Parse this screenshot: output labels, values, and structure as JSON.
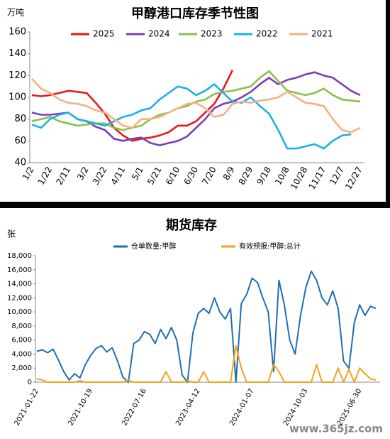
{
  "chart_data": [
    {
      "type": "line",
      "title": "甲醇港口库存季节性图",
      "y_label": "万吨",
      "categories": [
        "1/2",
        null,
        "1/22",
        null,
        "2/11",
        null,
        "3/2",
        null,
        "3/22",
        null,
        "4/11",
        null,
        "5/1",
        null,
        "5/21",
        null,
        "6/10",
        null,
        "6/30",
        null,
        "7/20",
        null,
        "8/9",
        null,
        "8/29",
        null,
        "9/18",
        null,
        "10/8",
        null,
        "10/28",
        null,
        "11/17",
        null,
        "12/7",
        null,
        "12/27"
      ],
      "ylim": [
        40,
        160
      ],
      "yticks": [
        40,
        60,
        80,
        100,
        120,
        140,
        160
      ],
      "grid": false,
      "series": [
        {
          "name": "2025",
          "color": "#e8191c",
          "values": [
            102,
            101,
            102,
            104,
            106,
            105,
            104,
            95,
            85,
            72,
            65,
            60,
            62,
            63,
            65,
            68,
            74,
            74,
            78,
            86,
            94,
            108,
            125,
            null,
            null,
            null,
            null,
            null,
            null,
            null,
            null,
            null,
            null,
            null,
            null,
            null,
            null
          ]
        },
        {
          "name": "2024",
          "color": "#7b3fb0",
          "values": [
            86,
            84,
            84,
            85,
            86,
            80,
            78,
            73,
            70,
            62,
            60,
            62,
            63,
            58,
            56,
            58,
            60,
            64,
            72,
            80,
            90,
            94,
            96,
            100,
            105,
            112,
            118,
            112,
            116,
            118,
            121,
            123,
            120,
            118,
            112,
            106,
            102
          ]
        },
        {
          "name": "2023",
          "color": "#8cbf4a",
          "values": [
            78,
            80,
            82,
            78,
            76,
            74,
            75,
            76,
            76,
            72,
            70,
            72,
            74,
            80,
            84,
            86,
            90,
            92,
            96,
            98,
            103,
            105,
            106,
            108,
            110,
            118,
            124,
            115,
            106,
            104,
            102,
            104,
            108,
            102,
            98,
            97,
            96
          ]
        },
        {
          "name": "2022",
          "color": "#1ab0e8",
          "values": [
            75,
            72,
            80,
            84,
            86,
            80,
            78,
            76,
            74,
            78,
            82,
            84,
            88,
            90,
            98,
            104,
            110,
            108,
            102,
            106,
            112,
            104,
            96,
            95,
            100,
            92,
            85,
            70,
            53,
            53,
            55,
            57,
            53,
            60,
            65,
            66,
            null
          ]
        },
        {
          "name": "2021",
          "color": "#f4b183",
          "values": [
            117,
            108,
            104,
            98,
            95,
            94,
            92,
            88,
            86,
            80,
            74,
            72,
            80,
            80,
            82,
            86,
            90,
            94,
            95,
            90,
            82,
            84,
            94,
            96,
            95,
            97,
            98,
            100,
            105,
            100,
            95,
            94,
            92,
            80,
            70,
            68,
            72
          ]
        }
      ]
    },
    {
      "type": "line",
      "title": "期货库存",
      "y_label": "张",
      "categories": [
        "2021-01-22",
        null,
        null,
        null,
        null,
        null,
        null,
        null,
        null,
        null,
        "2021-10-19",
        null,
        null,
        null,
        null,
        null,
        null,
        null,
        null,
        null,
        "2022-07-16",
        null,
        null,
        null,
        null,
        null,
        null,
        null,
        null,
        null,
        "2023-04-12",
        null,
        null,
        null,
        null,
        null,
        null,
        null,
        null,
        null,
        "2024-01-07",
        null,
        null,
        null,
        null,
        null,
        null,
        null,
        null,
        null,
        "2024-10-03",
        null,
        null,
        null,
        null,
        null,
        null,
        null,
        null,
        null,
        "2025-06-30",
        null,
        null,
        null
      ],
      "ylim": [
        0,
        18000
      ],
      "yticks": [
        0,
        {
          "value": 2000,
          "label": "2,000"
        },
        {
          "value": 4000,
          "label": "4,000"
        },
        {
          "value": 6000,
          "label": "6,000"
        },
        {
          "value": 8000,
          "label": "8,000"
        },
        {
          "value": 10000,
          "label": "10,000"
        },
        {
          "value": 12000,
          "label": "12,000"
        },
        {
          "value": 14000,
          "label": "14,000"
        },
        {
          "value": 16000,
          "label": "16,000"
        },
        {
          "value": 18000,
          "label": "18,000"
        }
      ],
      "grid": false,
      "series": [
        {
          "name": "仓单数量:甲醇",
          "color": "#1f6fb2",
          "values": [
            4400,
            4600,
            4200,
            4700,
            3200,
            1500,
            300,
            1200,
            600,
            2500,
            3800,
            4800,
            5200,
            4300,
            4900,
            3000,
            700,
            0,
            5500,
            6000,
            7200,
            6800,
            5500,
            7500,
            6200,
            7800,
            6000,
            1000,
            0,
            7000,
            9800,
            10500,
            9800,
            12000,
            10000,
            9000,
            10500,
            0,
            11200,
            12500,
            14800,
            14200,
            12000,
            10000,
            1500,
            14500,
            11000,
            6000,
            4000,
            9500,
            13500,
            15800,
            14500,
            12000,
            11000,
            13000,
            10500,
            3000,
            2000,
            8500,
            11000,
            9500,
            10800,
            10500
          ]
        },
        {
          "name": "有效预报:甲醇:总计",
          "color": "#f5a21b",
          "values": [
            500,
            300,
            0,
            0,
            0,
            0,
            0,
            0,
            200,
            0,
            0,
            0,
            0,
            0,
            0,
            0,
            0,
            300,
            0,
            0,
            0,
            0,
            0,
            0,
            1500,
            0,
            0,
            0,
            200,
            0,
            0,
            1500,
            0,
            0,
            0,
            0,
            0,
            5200,
            2000,
            0,
            0,
            0,
            0,
            0,
            2500,
            1500,
            0,
            0,
            0,
            0,
            0,
            0,
            2500,
            0,
            0,
            0,
            2000,
            0,
            1800,
            0,
            2000,
            1200,
            500,
            300
          ]
        }
      ]
    }
  ],
  "watermark": "www.365jz.com"
}
